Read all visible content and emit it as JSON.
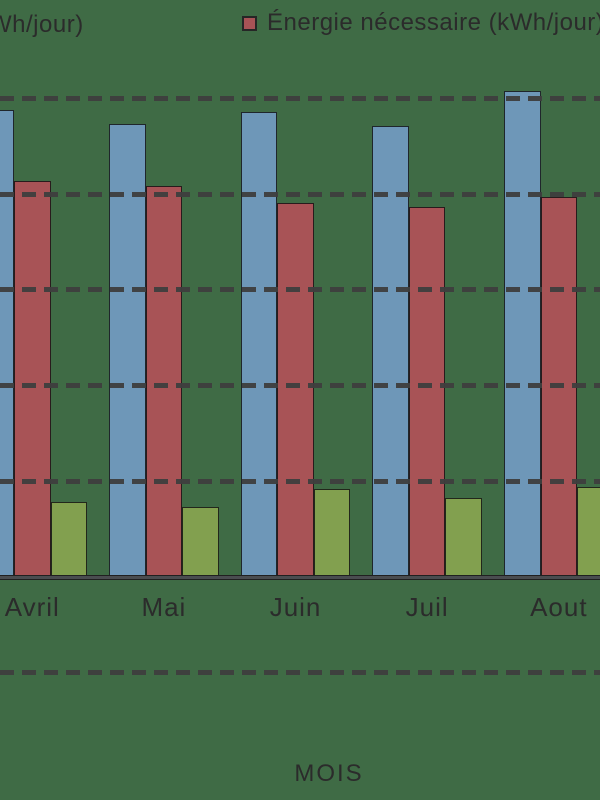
{
  "canvas": {
    "background": "#3f6b45"
  },
  "legend": {
    "items": [
      {
        "visible_label": "Wh/jour)",
        "truncated_left": true,
        "marker_visible": false
      },
      {
        "visible_label": "Énergie nécessaire (kWh/jour)",
        "truncated_left": false,
        "marker_visible": true,
        "marker_color": "#a85356"
      }
    ]
  },
  "x_axis": {
    "title": "MOIS"
  },
  "colors": {
    "background": "#3f6b45",
    "bar_blue": "#6e97b8",
    "bar_red": "#a85356",
    "bar_green": "#82a04f",
    "grid_dash": "#3e3e3e",
    "axis_line": "#4a4d50",
    "text": "#2b2b2b"
  },
  "chart_data": {
    "type": "bar",
    "categories": [
      "Avril",
      "Mai",
      "Juin",
      "Juil",
      "Aout"
    ],
    "series": [
      {
        "name": "Wh/jour)",
        "label_truncated": true,
        "color": "#6e97b8",
        "values": [
          4.88,
          4.73,
          4.86,
          4.71,
          5.08
        ]
      },
      {
        "name": "Énergie nécessaire (kWh/jour)",
        "label_truncated": false,
        "color": "#a85356",
        "values": [
          4.14,
          4.09,
          3.91,
          3.87,
          3.97
        ]
      },
      {
        "name": "",
        "label_truncated": true,
        "color": "#82a04f",
        "values": [
          0.78,
          0.73,
          0.92,
          0.83,
          0.94
        ]
      }
    ],
    "xlabel": "MOIS",
    "ylabel": "",
    "ylim_visible": [
      -1,
      5.2
    ],
    "gridline_values": [
      5,
      4,
      3,
      2,
      1,
      0,
      -1
    ],
    "grid": true,
    "legend_position": "top",
    "note": "y-axis tick labels outside the cropped frame; values estimated in gridline units"
  }
}
